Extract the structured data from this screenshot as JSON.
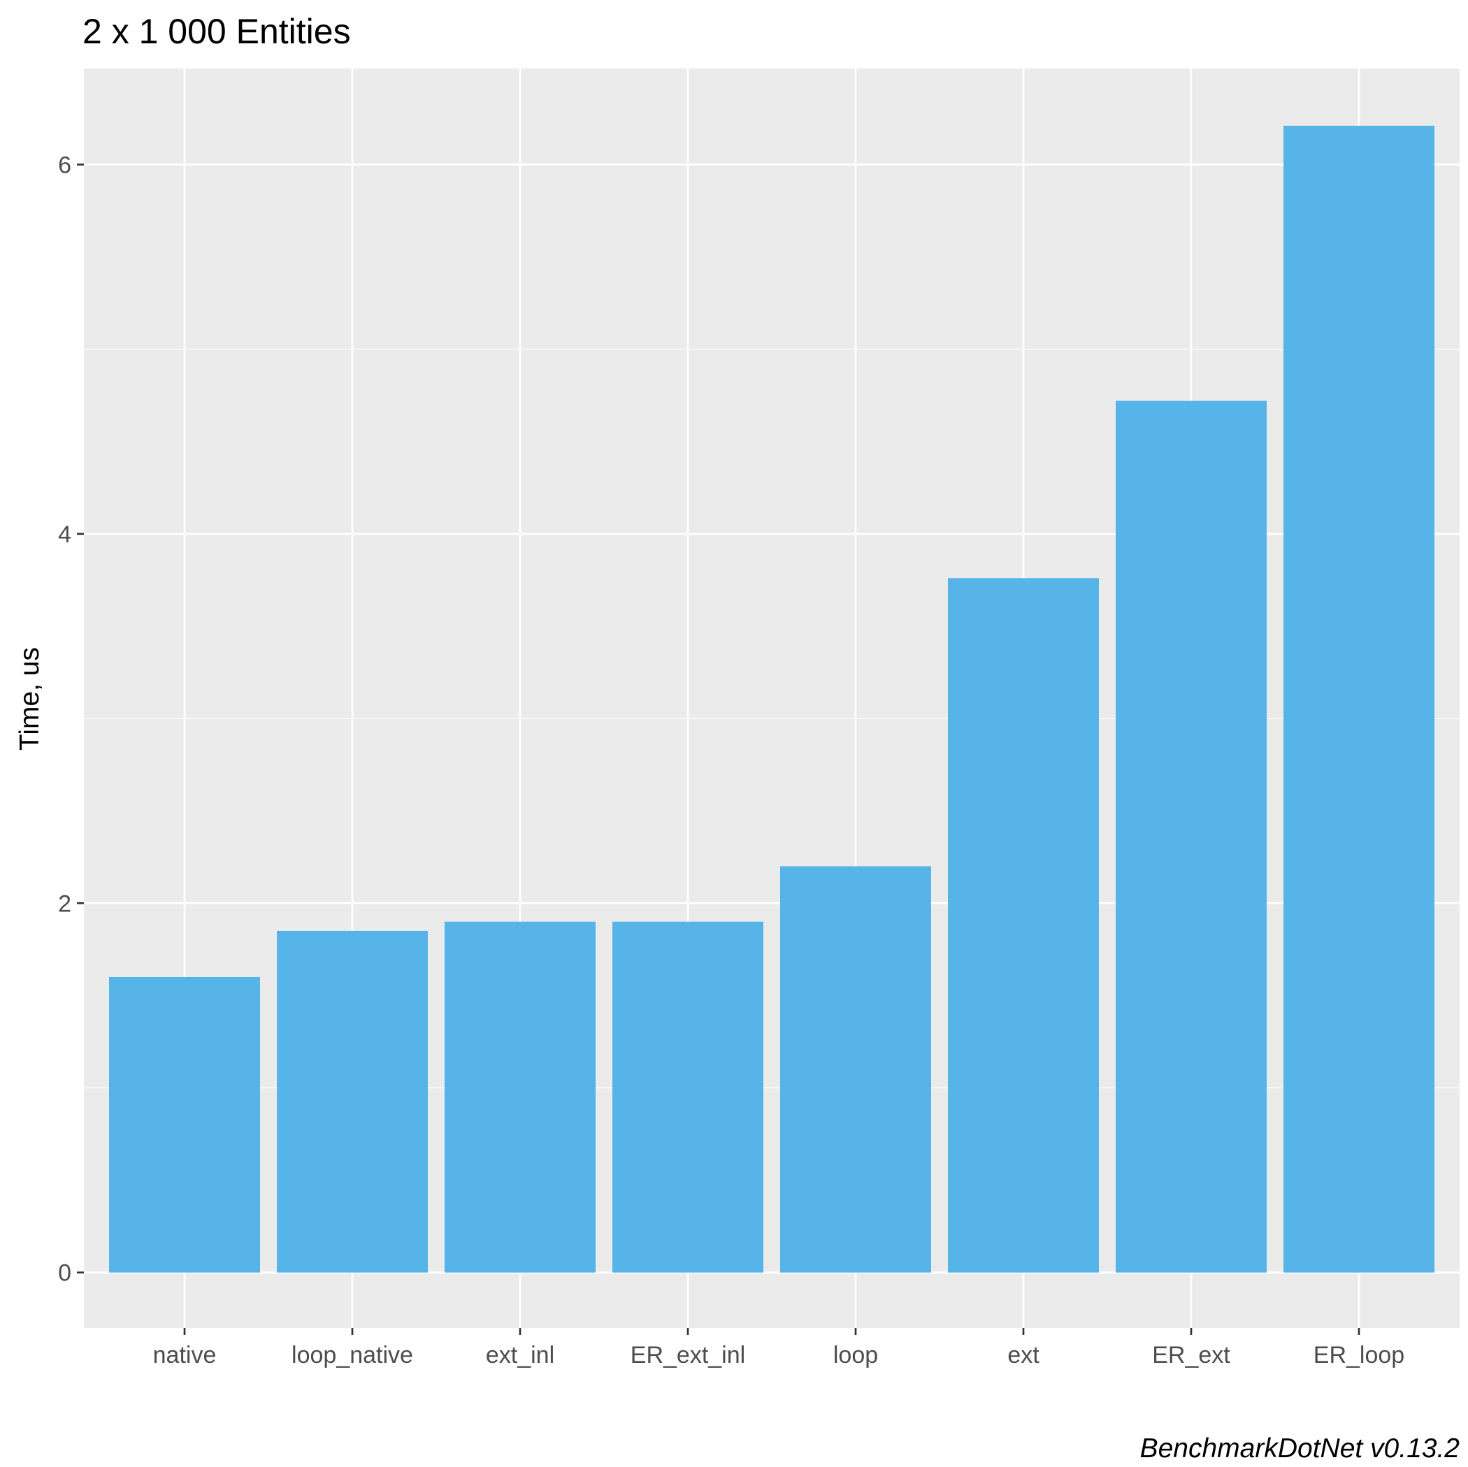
{
  "chart_data": {
    "type": "bar",
    "title": "2 x 1 000 Entities",
    "xlabel": "",
    "ylabel": "Time, us",
    "caption": "BenchmarkDotNet v0.13.2",
    "categories": [
      "native",
      "loop_native",
      "ext_inl",
      "ER_ext_inl",
      "loop",
      "ext",
      "ER_ext",
      "ER_loop"
    ],
    "values": [
      1.6,
      1.85,
      1.9,
      1.9,
      2.2,
      3.76,
      4.72,
      6.21
    ],
    "ylim": [
      -0.3,
      6.52
    ],
    "yticks": [
      0,
      2,
      4,
      6
    ],
    "grid": true,
    "colors": {
      "bar": "#56B4E9",
      "panel": "#EBEBEB",
      "grid": "#FFFFFF",
      "tick": "#333333"
    }
  }
}
